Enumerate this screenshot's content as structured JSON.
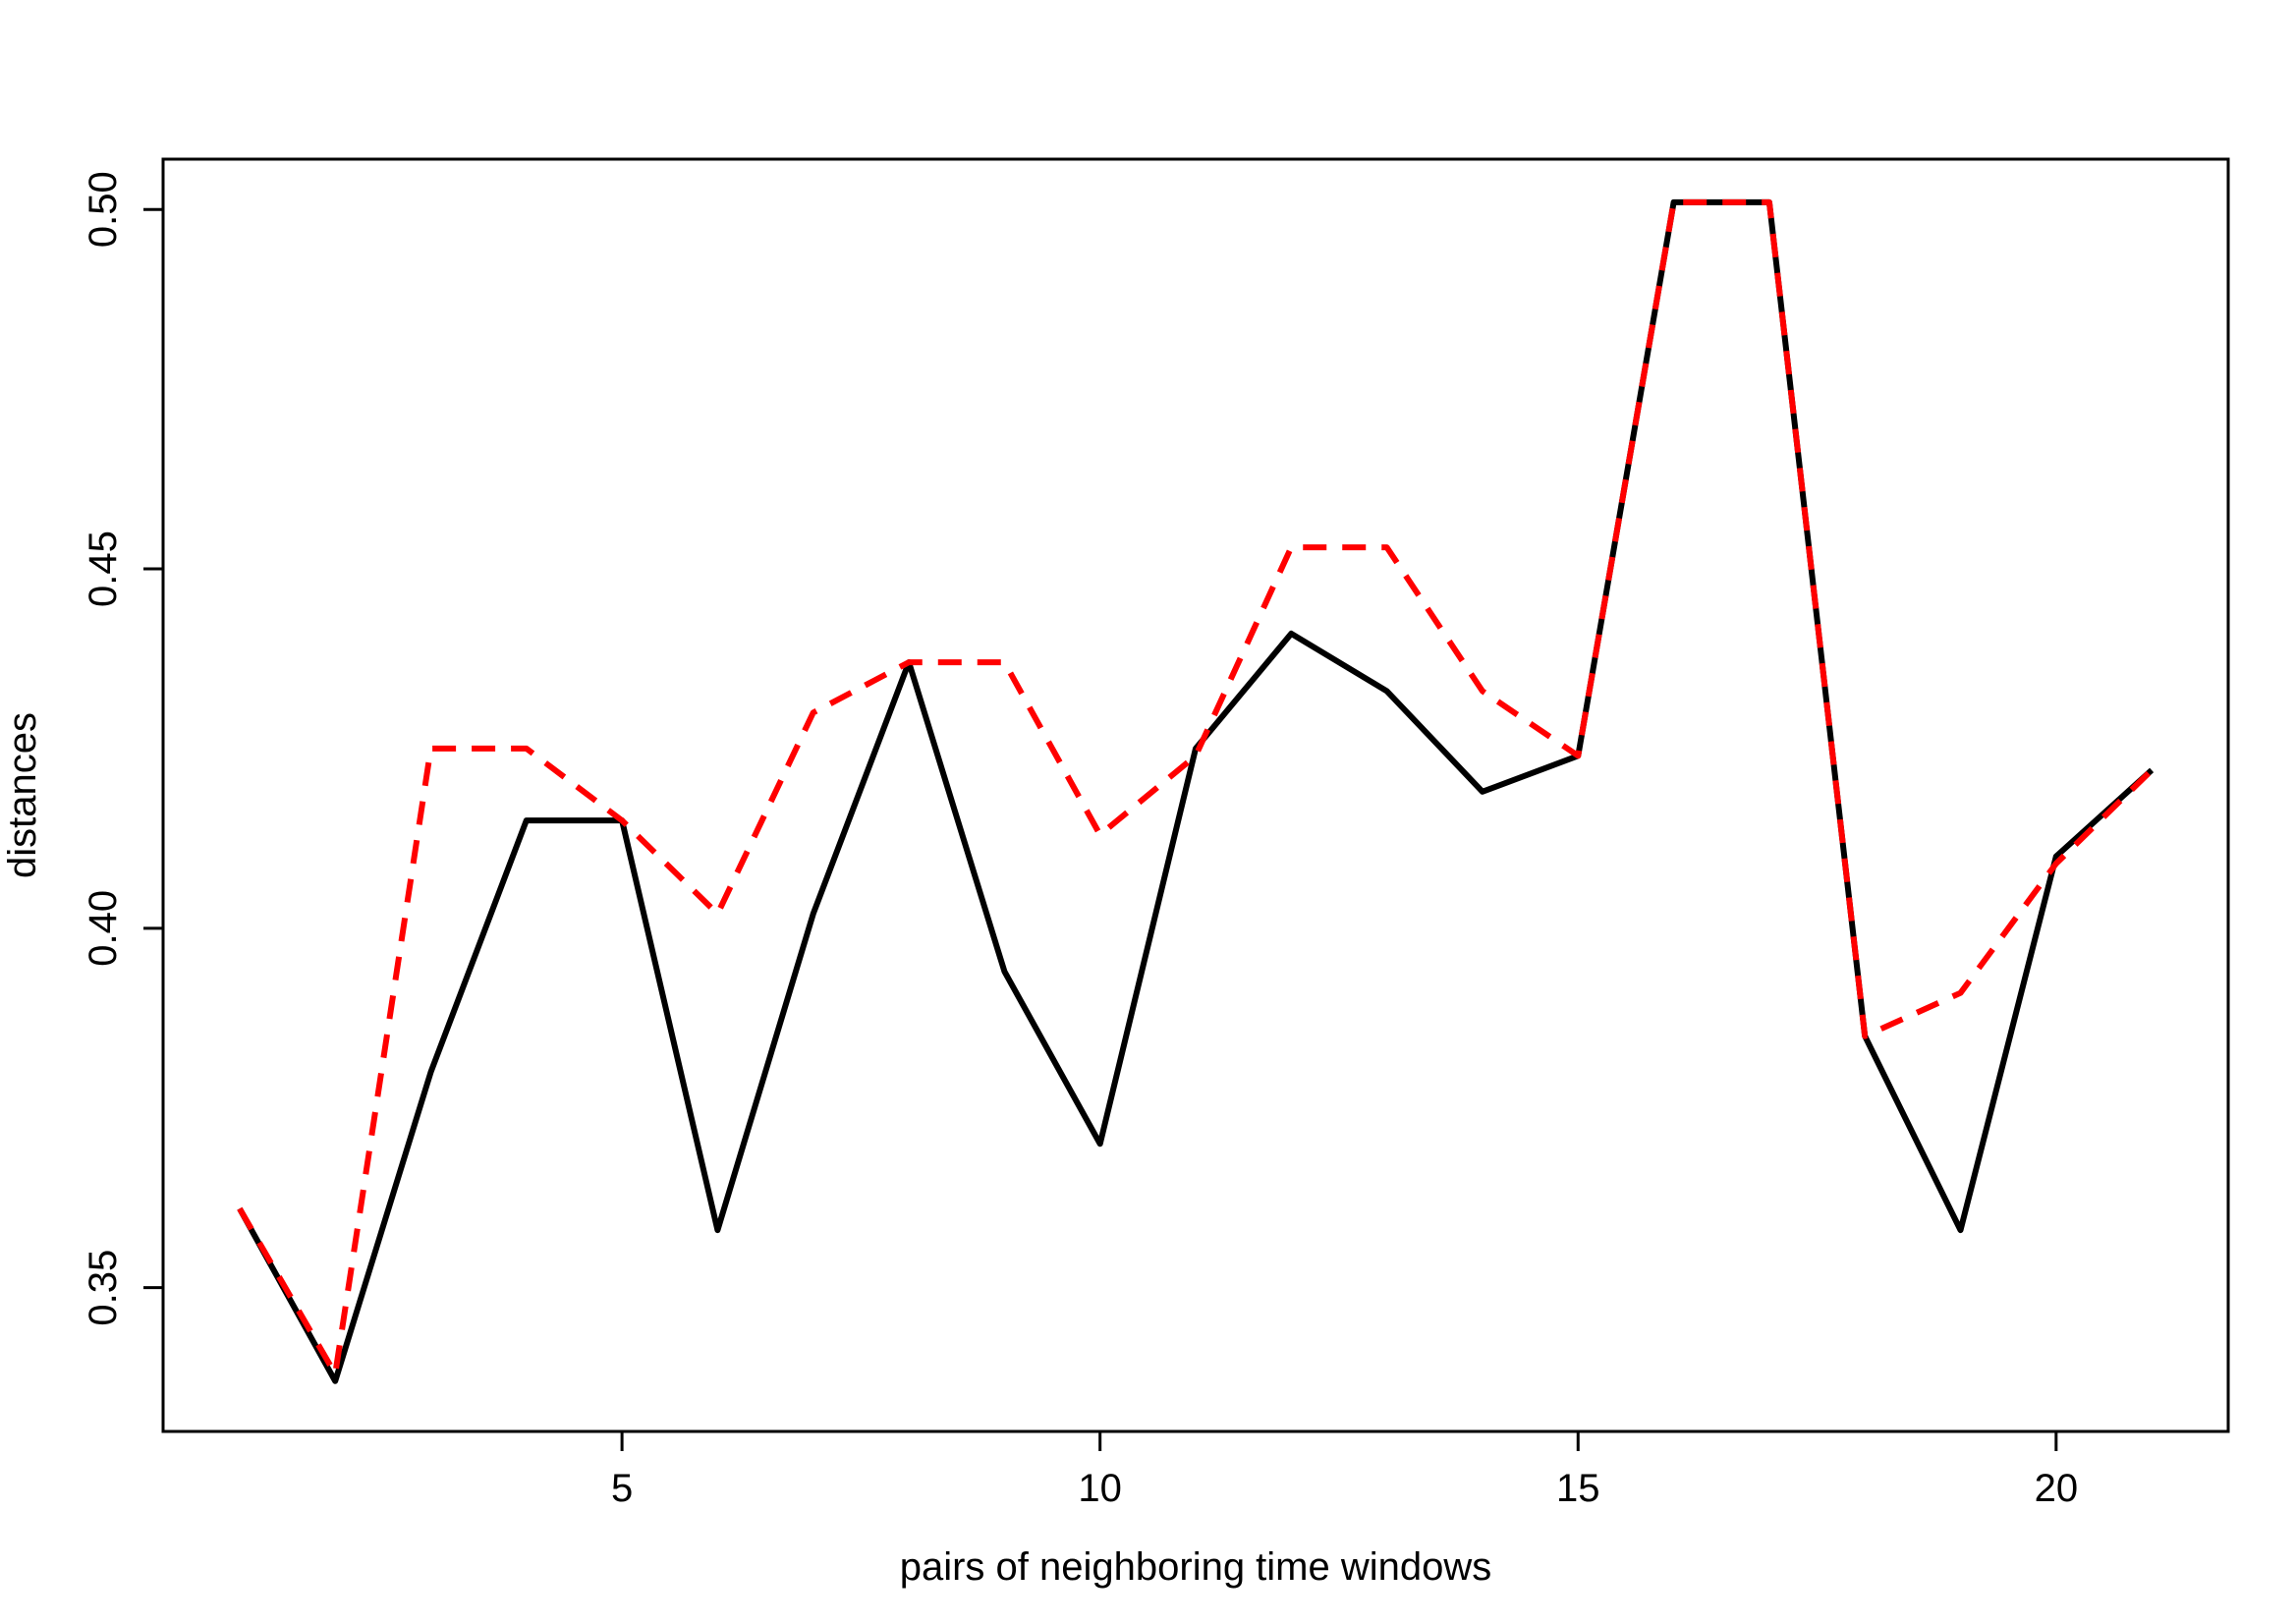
{
  "chart_data": {
    "type": "line",
    "title": "",
    "xlabel": "pairs of neighboring time windows",
    "ylabel": "distances",
    "xlim": [
      0.2,
      21.8
    ],
    "ylim": [
      0.33,
      0.507
    ],
    "x_ticks": [
      5,
      10,
      15,
      20
    ],
    "x_tick_labels": [
      "5",
      "10",
      "15",
      "20"
    ],
    "y_ticks": [
      0.35,
      0.4,
      0.45,
      0.5
    ],
    "y_tick_labels": [
      "0.35",
      "0.40",
      "0.45",
      "0.50"
    ],
    "grid": false,
    "x": [
      1,
      2,
      3,
      4,
      5,
      6,
      7,
      8,
      9,
      10,
      11,
      12,
      13,
      14,
      15,
      16,
      17,
      18,
      19,
      20,
      21
    ],
    "series": [
      {
        "color": "#000000",
        "line_style": "solid",
        "values": [
          0.361,
          0.337,
          0.38,
          0.415,
          0.415,
          0.358,
          0.402,
          0.437,
          0.394,
          0.37,
          0.425,
          0.441,
          0.433,
          0.419,
          0.424,
          0.501,
          0.501,
          0.385,
          0.358,
          0.41,
          0.422
        ]
      },
      {
        "color": "#ff0000",
        "line_style": "dashed",
        "values": [
          0.361,
          0.338,
          0.425,
          0.425,
          0.415,
          0.402,
          0.43,
          0.437,
          0.437,
          0.413,
          0.424,
          0.453,
          0.453,
          0.433,
          0.424,
          0.501,
          0.501,
          0.385,
          0.391,
          0.409,
          0.422
        ]
      }
    ]
  }
}
